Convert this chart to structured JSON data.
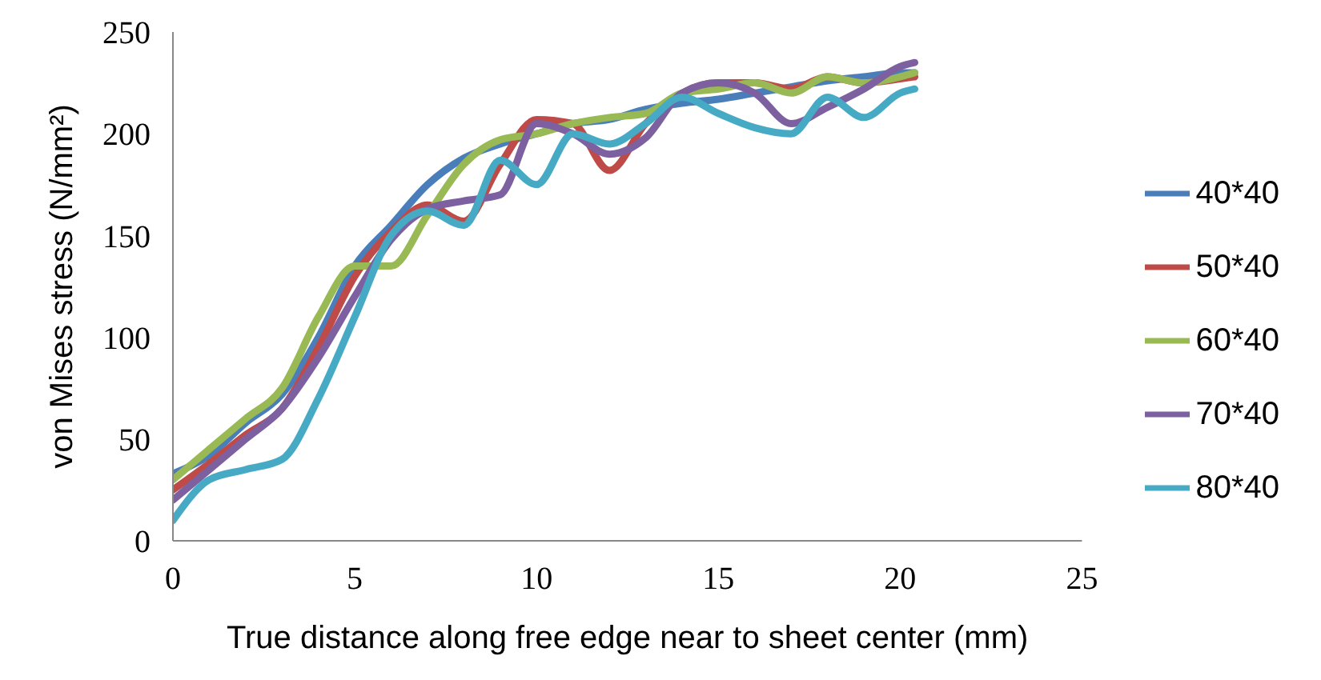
{
  "chart_data": {
    "type": "line",
    "xlabel": "True distance along free edge near to sheet center (mm)",
    "ylabel": "von Mises  stress (N/mm²)",
    "xlim": [
      0,
      25
    ],
    "xticks": [
      0,
      5,
      10,
      15,
      20,
      25
    ],
    "ylim": [
      0,
      250
    ],
    "yticks": [
      0,
      50,
      100,
      150,
      200,
      250
    ],
    "grid": false,
    "legend": "right",
    "marker": "none",
    "line_style": "solid",
    "x": [
      0,
      1,
      2,
      3,
      4,
      5,
      6,
      7,
      8,
      9,
      10,
      11,
      12,
      13,
      14,
      15,
      16,
      17,
      18,
      19,
      20,
      20.4
    ],
    "series": [
      {
        "name": "40*40",
        "color": "#4a7ebb",
        "values": [
          33,
          42,
          58,
          72,
          100,
          135,
          155,
          175,
          188,
          195,
          200,
          205,
          207,
          212,
          215,
          217,
          220,
          223,
          226,
          228,
          230,
          230
        ]
      },
      {
        "name": "50*40",
        "color": "#be4b48",
        "values": [
          25,
          38,
          52,
          65,
          95,
          130,
          152,
          165,
          157,
          185,
          207,
          205,
          182,
          205,
          220,
          225,
          225,
          222,
          228,
          225,
          227,
          228
        ]
      },
      {
        "name": "60*40",
        "color": "#98b954",
        "values": [
          30,
          45,
          60,
          75,
          110,
          135,
          135,
          160,
          185,
          197,
          200,
          205,
          208,
          210,
          220,
          222,
          225,
          220,
          228,
          225,
          228,
          230
        ]
      },
      {
        "name": "70*40",
        "color": "#7d60a0",
        "values": [
          20,
          35,
          50,
          65,
          90,
          120,
          148,
          163,
          167,
          170,
          205,
          200,
          190,
          198,
          220,
          225,
          220,
          205,
          213,
          222,
          233,
          235
        ]
      },
      {
        "name": "80*40",
        "color": "#46aac5",
        "values": [
          10,
          30,
          35,
          40,
          70,
          110,
          150,
          162,
          155,
          187,
          175,
          200,
          195,
          205,
          218,
          210,
          203,
          200,
          218,
          208,
          220,
          222
        ]
      }
    ]
  }
}
